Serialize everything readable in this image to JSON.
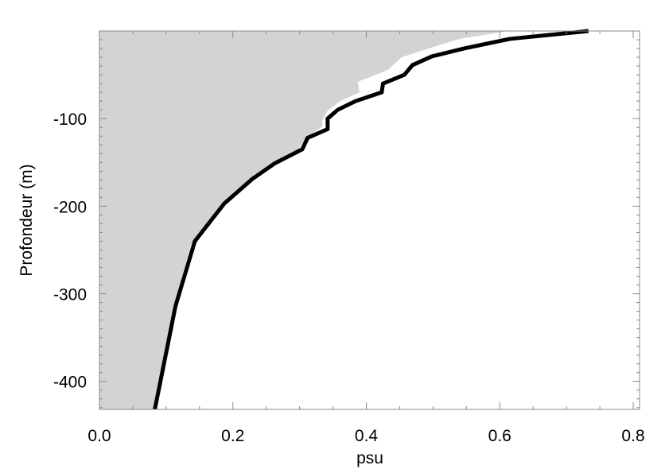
{
  "chart_data": {
    "type": "line",
    "xlabel": "psu",
    "ylabel": "Profondeur (m)",
    "xlim": [
      0,
      0.8095
    ],
    "ylim": [
      -432,
      0
    ],
    "xticks": [
      {
        "value": 0,
        "label": "0.0"
      },
      0.2,
      0.4,
      0.6,
      0.8
    ],
    "yticks": [
      -400,
      -300,
      -200,
      -100
    ],
    "series": [
      {
        "color": "#d3d3d3",
        "fill": true,
        "x": [
          0.614,
          0.54,
          0.501,
          0.453,
          0.433,
          0.411,
          0.387,
          0.39,
          0.361,
          0.342,
          0.334,
          0.334,
          0.31,
          0.298,
          0.26,
          0.225,
          0.183,
          0.137,
          0.111,
          0.081
        ],
        "values": [
          0,
          -9,
          -18,
          -30,
          -44,
          -51,
          -58,
          -70,
          -80,
          -91,
          -102,
          -109,
          -122,
          -135,
          -151,
          -169,
          -197,
          -245,
          -314,
          -432
        ]
      },
      {
        "color": "#000000",
        "fill": false,
        "x": [
          0.733,
          0.615,
          0.546,
          0.498,
          0.469,
          0.457,
          0.425,
          0.423,
          0.384,
          0.357,
          0.342,
          0.342,
          0.312,
          0.304,
          0.263,
          0.229,
          0.187,
          0.143,
          0.114,
          0.083
        ],
        "values": [
          0,
          -9,
          -20,
          -29,
          -39,
          -50,
          -60,
          -70,
          -80,
          -90,
          -100,
          -112,
          -122,
          -135,
          -151,
          -169,
          -197,
          -240,
          -314,
          -432
        ]
      }
    ]
  }
}
